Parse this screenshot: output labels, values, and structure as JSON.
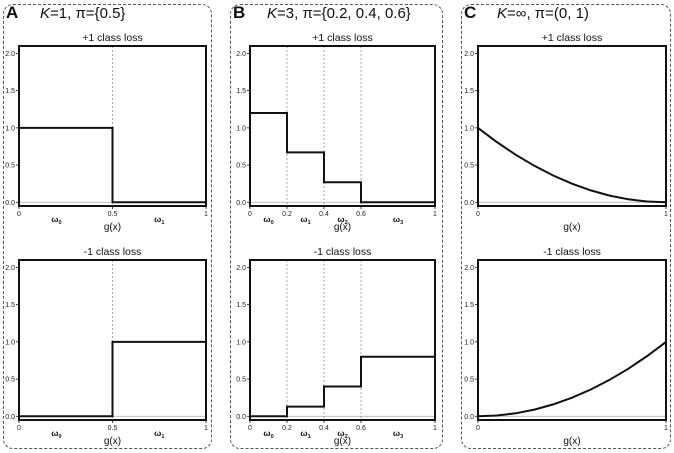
{
  "figure": {
    "panels": [
      {
        "letter": "A",
        "title_prefix": "K",
        "title_rest": "=1, π={0.5}"
      },
      {
        "letter": "B",
        "title_prefix": "K",
        "title_rest": "=3, π={0.2, 0.4, 0.6}"
      },
      {
        "letter": "C",
        "title_prefix": "K",
        "title_rest": "=∞, π=(0, 1)"
      }
    ]
  },
  "chart_data": [
    {
      "panel": "A",
      "type": "line",
      "step": true,
      "title": "+1 class loss",
      "xlabel": "g(x)",
      "xlim": [
        0,
        1
      ],
      "ylim": [
        -0.05,
        2.1
      ],
      "yticks": [
        0.0,
        0.5,
        1.0,
        1.5,
        2.0
      ],
      "ytick_labels": [
        "0.0",
        "0.5",
        "1.0",
        "1.5",
        "2.0"
      ],
      "xticks": [
        0,
        0.5,
        1
      ],
      "xtick_labels": [
        "0",
        "0.5",
        "1"
      ],
      "thresholds": [
        0.5
      ],
      "region_labels": [
        {
          "label": "ω",
          "sub": "0",
          "x": 0.2
        },
        {
          "label": "ω",
          "sub": "1",
          "x": 0.75
        }
      ],
      "series": [
        {
          "x": [
            0,
            0.5,
            0.5,
            1
          ],
          "y": [
            1.0,
            1.0,
            0.0,
            0.0
          ]
        }
      ]
    },
    {
      "panel": "A",
      "type": "line",
      "step": true,
      "title": "-1 class loss",
      "xlabel": "g(x)",
      "xlim": [
        0,
        1
      ],
      "ylim": [
        -0.05,
        2.1
      ],
      "yticks": [
        0.0,
        0.5,
        1.0,
        1.5,
        2.0
      ],
      "ytick_labels": [
        "0.0",
        "0.5",
        "1.0",
        "1.5",
        "2.0"
      ],
      "xticks": [
        0,
        0.5,
        1
      ],
      "xtick_labels": [
        "0",
        "0.5",
        "1"
      ],
      "thresholds": [
        0.5
      ],
      "region_labels": [
        {
          "label": "ω",
          "sub": "0",
          "x": 0.2
        },
        {
          "label": "ω",
          "sub": "1",
          "x": 0.75
        }
      ],
      "series": [
        {
          "x": [
            0,
            0.5,
            0.5,
            1
          ],
          "y": [
            0.0,
            0.0,
            1.0,
            1.0
          ]
        }
      ]
    },
    {
      "panel": "B",
      "type": "line",
      "step": true,
      "title": "+1 class loss",
      "xlabel": "g(x)",
      "xlim": [
        0,
        1
      ],
      "ylim": [
        -0.05,
        2.1
      ],
      "yticks": [
        0.0,
        0.5,
        1.0,
        1.5,
        2.0
      ],
      "ytick_labels": [
        "0.0",
        "0.5",
        "1.0",
        "1.5",
        "2.0"
      ],
      "xticks": [
        0,
        0.2,
        0.4,
        0.6,
        1
      ],
      "xtick_labels": [
        "0",
        "0.2",
        "0.4",
        "0.6",
        "1"
      ],
      "thresholds": [
        0.2,
        0.4,
        0.6
      ],
      "region_labels": [
        {
          "label": "ω",
          "sub": "0",
          "x": 0.1
        },
        {
          "label": "ω",
          "sub": "1",
          "x": 0.3
        },
        {
          "label": "ω",
          "sub": "2",
          "x": 0.5
        },
        {
          "label": "ω",
          "sub": "3",
          "x": 0.8
        }
      ],
      "series": [
        {
          "x": [
            0,
            0.2,
            0.2,
            0.4,
            0.4,
            0.6,
            0.6,
            1
          ],
          "y": [
            1.2,
            1.2,
            0.67,
            0.67,
            0.27,
            0.27,
            0.0,
            0.0
          ]
        }
      ]
    },
    {
      "panel": "B",
      "type": "line",
      "step": true,
      "title": "-1 class loss",
      "xlabel": "g(x)",
      "xlim": [
        0,
        1
      ],
      "ylim": [
        -0.05,
        2.1
      ],
      "yticks": [
        0.0,
        0.5,
        1.0,
        1.5,
        2.0
      ],
      "ytick_labels": [
        "0.0",
        "0.5",
        "1.0",
        "1.5",
        "2.0"
      ],
      "xticks": [
        0,
        0.2,
        0.4,
        0.6,
        1
      ],
      "xtick_labels": [
        "0",
        "0.2",
        "0.4",
        "0.6",
        "1"
      ],
      "thresholds": [
        0.2,
        0.4,
        0.6
      ],
      "region_labels": [
        {
          "label": "ω",
          "sub": "0",
          "x": 0.1
        },
        {
          "label": "ω",
          "sub": "1",
          "x": 0.3
        },
        {
          "label": "ω",
          "sub": "2",
          "x": 0.5
        },
        {
          "label": "ω",
          "sub": "3",
          "x": 0.8
        }
      ],
      "series": [
        {
          "x": [
            0,
            0.2,
            0.2,
            0.4,
            0.4,
            0.6,
            0.6,
            1
          ],
          "y": [
            0.0,
            0.0,
            0.13,
            0.13,
            0.4,
            0.4,
            0.8,
            0.8
          ]
        }
      ]
    },
    {
      "panel": "C",
      "type": "line",
      "title": "+1 class loss",
      "xlabel": "g(x)",
      "xlim": [
        0,
        1
      ],
      "ylim": [
        -0.05,
        2.1
      ],
      "yticks": [
        0.0,
        0.5,
        1.0,
        1.5,
        2.0
      ],
      "ytick_labels": [
        "0.0",
        "0.5",
        "1.0",
        "1.5",
        "2.0"
      ],
      "xticks": [
        0,
        1
      ],
      "xtick_labels": [
        "0",
        "1"
      ],
      "thresholds": [],
      "region_labels": [],
      "series": [
        {
          "x": [
            0,
            0.1,
            0.2,
            0.3,
            0.4,
            0.5,
            0.6,
            0.7,
            0.8,
            0.9,
            1.0
          ],
          "y": [
            1.0,
            0.81,
            0.64,
            0.49,
            0.36,
            0.25,
            0.16,
            0.09,
            0.04,
            0.01,
            0.0
          ]
        }
      ]
    },
    {
      "panel": "C",
      "type": "line",
      "title": "-1 class loss",
      "xlabel": "g(x)",
      "xlim": [
        0,
        1
      ],
      "ylim": [
        -0.05,
        2.1
      ],
      "yticks": [
        0.0,
        0.5,
        1.0,
        1.5,
        2.0
      ],
      "ytick_labels": [
        "0.0",
        "0.5",
        "1.0",
        "1.5",
        "2.0"
      ],
      "xticks": [
        0,
        1
      ],
      "xtick_labels": [
        "0",
        "1"
      ],
      "thresholds": [],
      "region_labels": [],
      "series": [
        {
          "x": [
            0,
            0.1,
            0.2,
            0.3,
            0.4,
            0.5,
            0.6,
            0.7,
            0.8,
            0.9,
            1.0
          ],
          "y": [
            0.0,
            0.01,
            0.04,
            0.09,
            0.16,
            0.25,
            0.36,
            0.49,
            0.64,
            0.81,
            1.0
          ]
        }
      ]
    }
  ]
}
